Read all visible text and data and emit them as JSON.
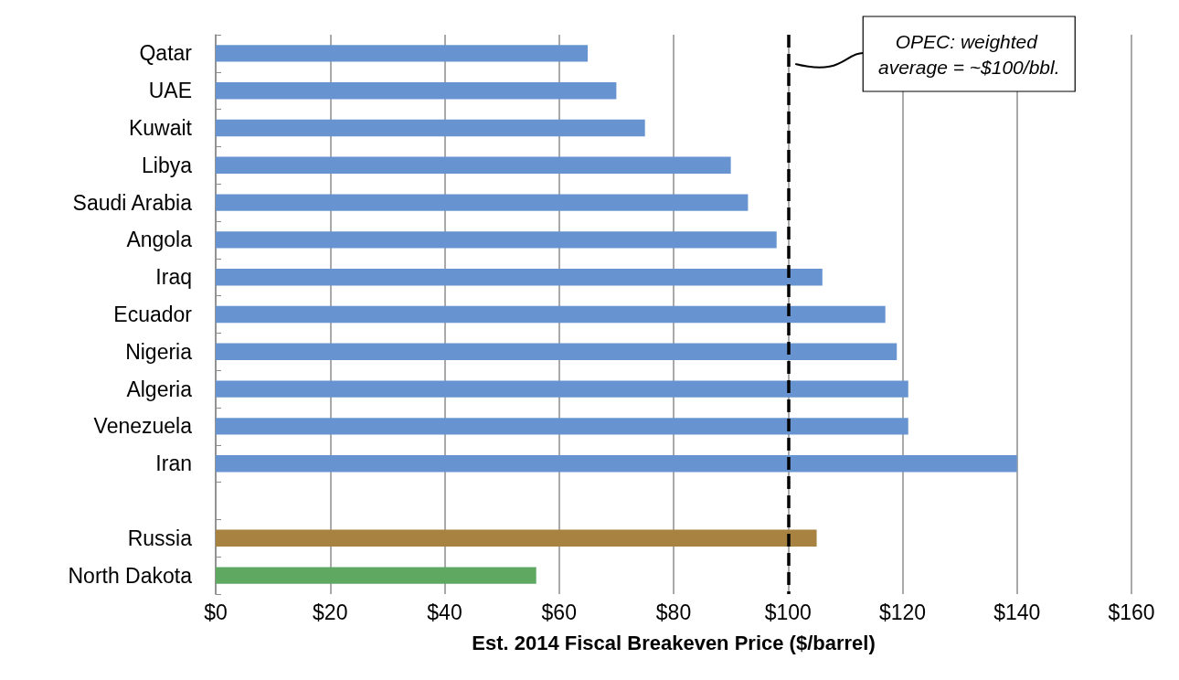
{
  "chart_data": {
    "type": "bar",
    "orientation": "horizontal",
    "categories": [
      "Qatar",
      "UAE",
      "Kuwait",
      "Libya",
      "Saudi Arabia",
      "Angola",
      "Iraq",
      "Ecuador",
      "Nigeria",
      "Algeria",
      "Venezuela",
      "Iran",
      null,
      "Russia",
      "North Dakota"
    ],
    "values": [
      65,
      70,
      75,
      90,
      93,
      98,
      106,
      117,
      119,
      121,
      121,
      140,
      null,
      105,
      56
    ],
    "colors": [
      "#6794d0",
      "#6794d0",
      "#6794d0",
      "#6794d0",
      "#6794d0",
      "#6794d0",
      "#6794d0",
      "#6794d0",
      "#6794d0",
      "#6794d0",
      "#6794d0",
      "#6794d0",
      null,
      "#a88240",
      "#5ea862"
    ],
    "xlabel": "Est. 2014 Fiscal Breakeven Price ($/barrel)",
    "xlim": [
      0,
      160
    ],
    "xticks": [
      {
        "value": 0,
        "label": "$0"
      },
      {
        "value": 20,
        "label": "$20"
      },
      {
        "value": 40,
        "label": "$40"
      },
      {
        "value": 60,
        "label": "$60"
      },
      {
        "value": 80,
        "label": "$80"
      },
      {
        "value": 100,
        "label": "$100"
      },
      {
        "value": 120,
        "label": "$120"
      },
      {
        "value": 140,
        "label": "$140"
      },
      {
        "value": 160,
        "label": "$160"
      }
    ],
    "grid": "x",
    "ref_lines": [
      {
        "axis": "x",
        "value": 100,
        "color": "#000000",
        "line_style": "dashed",
        "label": "OPEC: weighted average = ~$100/bbl."
      }
    ]
  }
}
